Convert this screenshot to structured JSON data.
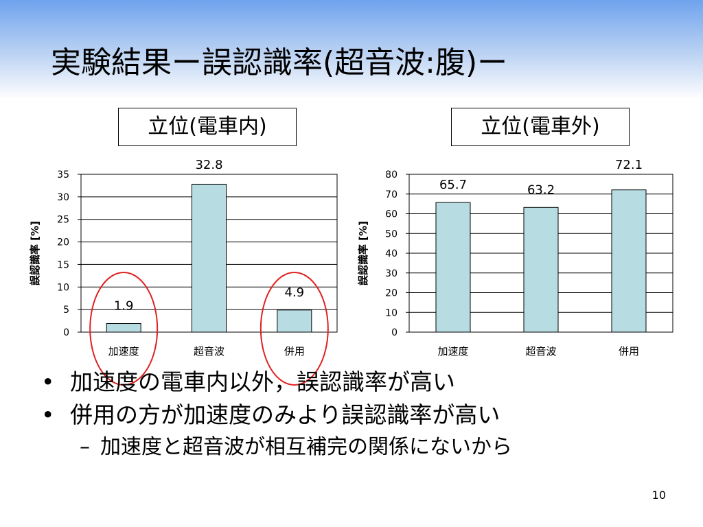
{
  "slide": {
    "title": "実験結果ー誤認識率(超音波:腹)ー",
    "page_number": "10"
  },
  "colors": {
    "bar_fill": "#b7dde3",
    "highlight_circle": "#e02020",
    "title_band_top": "#6fa3ee"
  },
  "bullets": [
    {
      "text": "加速度の電車内以外，誤認識率が高い"
    },
    {
      "text": "併用の方が加速度のみより誤認識率が高い"
    }
  ],
  "sub_bullets": [
    {
      "marker": "–",
      "text": "加速度と超音波が相互補完の関係にないから"
    }
  ],
  "chart_data": [
    {
      "type": "bar",
      "title": "立位(電車内)",
      "categories": [
        "加速度",
        "超音波",
        "併用"
      ],
      "values": [
        1.9,
        32.8,
        4.9
      ],
      "value_labels": [
        "1.9",
        "32.8",
        "4.9"
      ],
      "ylabel": "誤認識率 [%]",
      "ylim": [
        0,
        35
      ],
      "yticks": [
        0,
        5,
        10,
        15,
        20,
        25,
        30,
        35
      ],
      "grid": true,
      "highlighted_categories": [
        "加速度",
        "併用"
      ]
    },
    {
      "type": "bar",
      "title": "立位(電車外)",
      "categories": [
        "加速度",
        "超音波",
        "併用"
      ],
      "values": [
        65.7,
        63.2,
        72.1
      ],
      "value_labels": [
        "65.7",
        "63.2",
        "72.1"
      ],
      "ylabel": "誤認識率 [%]",
      "ylim": [
        0,
        80
      ],
      "yticks": [
        0,
        10,
        20,
        30,
        40,
        50,
        60,
        70,
        80
      ],
      "grid": true,
      "highlighted_categories": []
    }
  ]
}
